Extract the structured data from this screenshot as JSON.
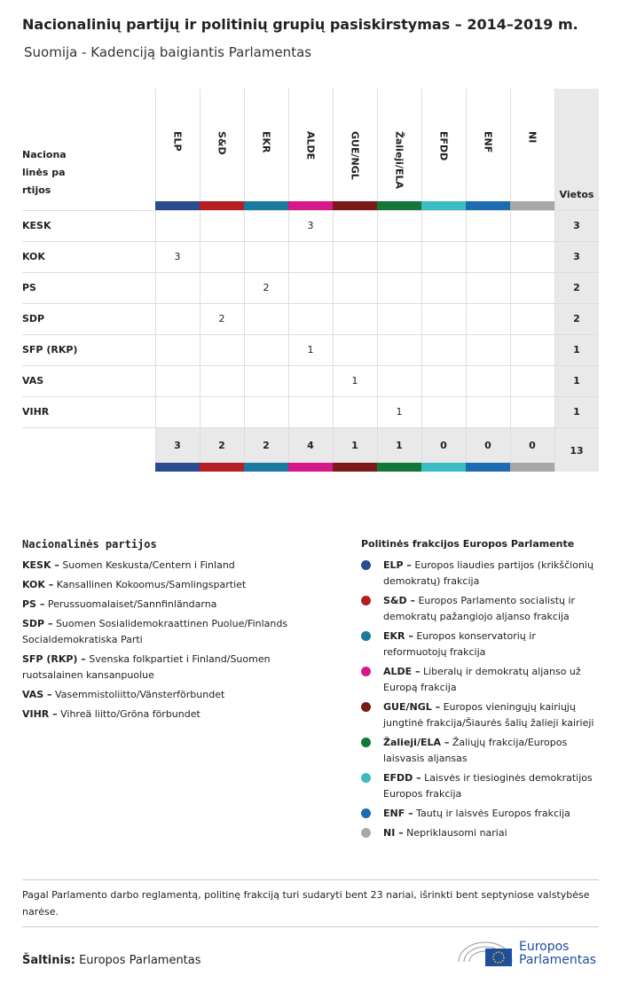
{
  "header": {
    "title": "Nacionalinių partijų ir politinių grupių pasiskirstymas – 2014–2019 m.",
    "subtitle": "Suomija - Kadenciją baigiantis Parlamentas"
  },
  "table": {
    "party_header": "Nacionalinės partijos",
    "total_header": "Vietos",
    "groups": [
      {
        "name": "ELP",
        "color": "#2b4b8e"
      },
      {
        "name": "S&D",
        "color": "#b51f24"
      },
      {
        "name": "EKR",
        "color": "#1a7aa0"
      },
      {
        "name": "ALDE",
        "color": "#d6198a"
      },
      {
        "name": "GUE/NGL",
        "color": "#7b1a18"
      },
      {
        "name": "Žalieji/ELA",
        "color": "#13773a"
      },
      {
        "name": "EFDD",
        "color": "#3bbcc0"
      },
      {
        "name": "ENF",
        "color": "#1d6bb0"
      },
      {
        "name": "NI",
        "color": "#a8a8a8"
      }
    ],
    "rows": [
      {
        "party": "KESK",
        "values": [
          null,
          null,
          null,
          3,
          null,
          null,
          null,
          null,
          null
        ],
        "total": 3
      },
      {
        "party": "KOK",
        "values": [
          3,
          null,
          null,
          null,
          null,
          null,
          null,
          null,
          null
        ],
        "total": 3
      },
      {
        "party": "PS",
        "values": [
          null,
          null,
          2,
          null,
          null,
          null,
          null,
          null,
          null
        ],
        "total": 2
      },
      {
        "party": "SDP",
        "values": [
          null,
          2,
          null,
          null,
          null,
          null,
          null,
          null,
          null
        ],
        "total": 2
      },
      {
        "party": "SFP (RKP)",
        "values": [
          null,
          null,
          null,
          1,
          null,
          null,
          null,
          null,
          null
        ],
        "total": 1
      },
      {
        "party": "VAS",
        "values": [
          null,
          null,
          null,
          null,
          1,
          null,
          null,
          null,
          null
        ],
        "total": 1
      },
      {
        "party": "VIHR",
        "values": [
          null,
          null,
          null,
          null,
          null,
          1,
          null,
          null,
          null
        ],
        "total": 1
      }
    ],
    "totals": [
      3,
      2,
      2,
      4,
      1,
      1,
      0,
      0,
      0
    ],
    "grand_total": 13
  },
  "party_legend": {
    "title": "Nacionalinės partijos",
    "items": [
      {
        "abbr": "KESK –",
        "name": "Suomen Keskusta/Centern i Finland"
      },
      {
        "abbr": "KOK –",
        "name": "Kansallinen Kokoomus/Samlingspartiet"
      },
      {
        "abbr": "PS –",
        "name": "Perussuomalaiset/Sannfinländarna"
      },
      {
        "abbr": "SDP –",
        "name": "Suomen Sosialidemokraattinen Puolue/Finlands Socialdemokratiska Parti"
      },
      {
        "abbr": "SFP (RKP) –",
        "name": "Svenska folkpartiet i Finland/Suomen ruotsalainen kansanpuolue"
      },
      {
        "abbr": "VAS –",
        "name": "Vasemmistoliitto/Vänsterförbundet"
      },
      {
        "abbr": "VIHR –",
        "name": "Vihreä liitto/Gröna förbundet"
      }
    ]
  },
  "group_legend": {
    "title": "Politinės frakcijos Europos Parlamente",
    "items": [
      {
        "abbr": "ELP –",
        "name": "Europos liaudies partijos (krikščionių demokratų) frakcija"
      },
      {
        "abbr": "S&D –",
        "name": "Europos Parlamento socialistų ir demokratų pažangiojo aljanso frakcija"
      },
      {
        "abbr": "EKR –",
        "name": "Europos konservatorių ir reformuotojų frakcija"
      },
      {
        "abbr": "ALDE –",
        "name": "Liberalų ir demokratų aljanso už Europą frakcija"
      },
      {
        "abbr": "GUE/NGL –",
        "name": "Europos vieningųjų kairiųjų jungtinė frakcija/Šiaurės šalių žalieji kairieji"
      },
      {
        "abbr": "Žalieji/ELA –",
        "name": "Žaliųjų frakcija/Europos laisvasis aljansas"
      },
      {
        "abbr": "EFDD –",
        "name": "Laisvės ir tiesioginės demokratijos Europos frakcija"
      },
      {
        "abbr": "ENF –",
        "name": "Tautų ir laisvės Europos frakcija"
      },
      {
        "abbr": "NI –",
        "name": "Nepriklausomi nariai"
      }
    ]
  },
  "footer": {
    "note": "Pagal Parlamento darbo reglamentą, politinę frakciją turi sudaryti bent 23 nariai, išrinkti bent septyniose valstybėse narėse.",
    "source_label": "Šaltinis:",
    "source": "Europos Parlamentas",
    "logo_line1": "Europos",
    "logo_line2": "Parlamentas"
  }
}
